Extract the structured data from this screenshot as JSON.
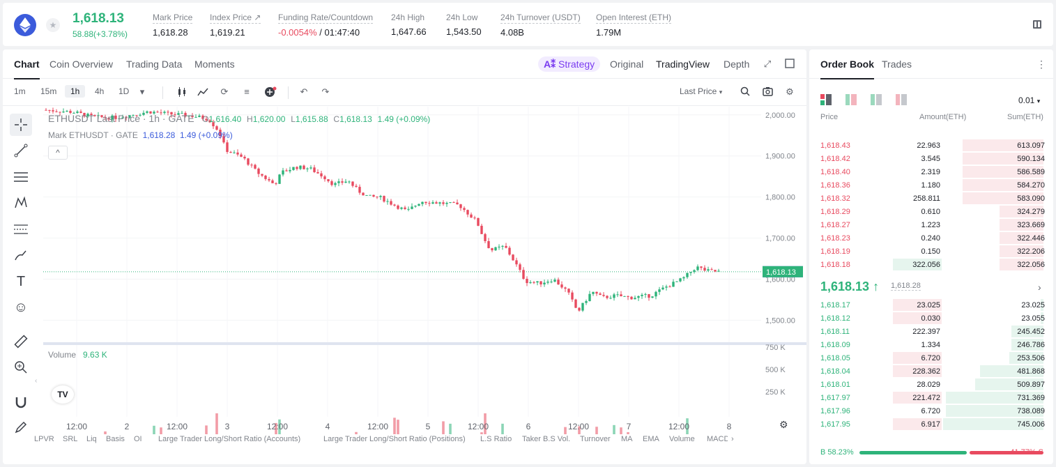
{
  "header": {
    "last_price": "1,618.13",
    "change": "58.88(+3.78%)",
    "stats": [
      {
        "label": "Mark Price",
        "value": "1,618.28"
      },
      {
        "label": "Index Price ↗",
        "value": "1,619.21"
      },
      {
        "label": "Funding Rate/Countdown",
        "value_neg": "-0.0054%",
        "value": " / 01:47:40"
      },
      {
        "label": "24h High",
        "value": "1,647.66"
      },
      {
        "label": "24h Low",
        "value": "1,543.50"
      },
      {
        "label": "24h Turnover (USDT)",
        "value": "4.08B"
      },
      {
        "label": "Open Interest (ETH)",
        "value": "1.79M"
      }
    ]
  },
  "chart_tabs": {
    "chart": "Chart",
    "coin_overview": "Coin Overview",
    "trading_data": "Trading Data",
    "moments": "Moments",
    "strategy": "Strategy",
    "original": "Original",
    "tradingview": "TradingView",
    "depth": "Depth"
  },
  "toolbar": {
    "timeframes": [
      "1m",
      "15m",
      "1h",
      "4h",
      "1D"
    ],
    "active_timeframe": "1h",
    "price_type": "Last Price"
  },
  "legend": {
    "symbol": "ETHUSDT Last Price · 1h · GATE",
    "o_label": "O",
    "o": "1,616.40",
    "h_label": "H",
    "h": "1,620.00",
    "l_label": "L",
    "l": "1,615.88",
    "c_label": "C",
    "c": "1,618.13",
    "chg": "1.49 (+0.09%)",
    "mark_symbol": "Mark ETHUSDT · GATE",
    "mark_value": "1,618.28",
    "mark_chg": "1.49 (+0.09%)",
    "volume_label": "Volume",
    "volume_value": "9.63 K"
  },
  "price_axis": [
    "2,000.00",
    "1,900.00",
    "1,800.00",
    "1,700.00",
    "1,600.00",
    "1,500.00"
  ],
  "price_tags": {
    "mark": "1,618.28",
    "last": "1,618.13",
    "volume": "9.63 K"
  },
  "volume_axis": [
    "750 K",
    "500 K",
    "250 K"
  ],
  "time_axis": [
    "12:00",
    "2",
    "12:00",
    "3",
    "12:00",
    "4",
    "12:00",
    "5",
    "12:00",
    "6",
    "12:00",
    "7",
    "12:00",
    "8"
  ],
  "indicators": [
    "LPVR",
    "SRL",
    "Liq",
    "Basis",
    "OI",
    "Large Trader Long/Short Ratio (Accounts)",
    "Large Trader Long/Short Ratio (Positions)",
    "L.S Ratio",
    "Taker B.S Vol.",
    "Turnover",
    "MA",
    "EMA",
    "Volume",
    "MACD"
  ],
  "colors": {
    "up": "#2eb37a",
    "down": "#e84a5f",
    "accent": "#3b5bdb"
  },
  "orderbook": {
    "tab_book": "Order Book",
    "tab_trades": "Trades",
    "precision": "0.01",
    "col_price": "Price",
    "col_amount": "Amount(ETH)",
    "col_sum": "Sum(ETH)",
    "asks": [
      {
        "price": "1,618.43",
        "amount": "22.963",
        "sum": "613.097",
        "amt_frac": 0.0,
        "sum_frac": 0.33
      },
      {
        "price": "1,618.42",
        "amount": "3.545",
        "sum": "590.134",
        "amt_frac": 0.0,
        "sum_frac": 0.33
      },
      {
        "price": "1,618.40",
        "amount": "2.319",
        "sum": "586.589",
        "amt_frac": 0.0,
        "sum_frac": 0.33
      },
      {
        "price": "1,618.36",
        "amount": "1.180",
        "sum": "584.270",
        "amt_frac": 0.0,
        "sum_frac": 0.33
      },
      {
        "price": "1,618.32",
        "amount": "258.811",
        "sum": "583.090",
        "amt_frac": 0.0,
        "sum_frac": 0.33
      },
      {
        "price": "1,618.29",
        "amount": "0.610",
        "sum": "324.279",
        "amt_frac": 0.0,
        "sum_frac": 0.18
      },
      {
        "price": "1,618.27",
        "amount": "1.223",
        "sum": "323.669",
        "amt_frac": 0.0,
        "sum_frac": 0.18
      },
      {
        "price": "1,618.23",
        "amount": "0.240",
        "sum": "322.446",
        "amt_frac": 0.0,
        "sum_frac": 0.18
      },
      {
        "price": "1,618.19",
        "amount": "0.150",
        "sum": "322.206",
        "amt_frac": 0.0,
        "sum_frac": 0.18
      },
      {
        "price": "1,618.18",
        "amount": "322.056",
        "sum": "322.056",
        "amt_frac": 0.14,
        "sum_frac": 0.18
      }
    ],
    "mid_price": "1,618.13 ↑",
    "mid_mark": "1,618.28",
    "bids": [
      {
        "price": "1,618.17",
        "amount": "23.025",
        "sum": "23.025",
        "amt_frac": 0.1,
        "sum_frac": 0.01
      },
      {
        "price": "1,618.12",
        "amount": "0.030",
        "sum": "23.055",
        "amt_frac": 0.1,
        "sum_frac": 0.01
      },
      {
        "price": "1,618.11",
        "amount": "222.397",
        "sum": "245.452",
        "amt_frac": 0.0,
        "sum_frac": 0.13
      },
      {
        "price": "1,618.09",
        "amount": "1.334",
        "sum": "246.786",
        "amt_frac": 0.0,
        "sum_frac": 0.13
      },
      {
        "price": "1,618.05",
        "amount": "6.720",
        "sum": "253.506",
        "amt_frac": 0.1,
        "sum_frac": 0.14
      },
      {
        "price": "1,618.04",
        "amount": "228.362",
        "sum": "481.868",
        "amt_frac": 0.1,
        "sum_frac": 0.26
      },
      {
        "price": "1,618.01",
        "amount": "28.029",
        "sum": "509.897",
        "amt_frac": 0.0,
        "sum_frac": 0.28
      },
      {
        "price": "1,617.97",
        "amount": "221.472",
        "sum": "731.369",
        "amt_frac": 0.1,
        "sum_frac": 0.4
      },
      {
        "price": "1,617.96",
        "amount": "6.720",
        "sum": "738.089",
        "amt_frac": 0.0,
        "sum_frac": 0.4
      },
      {
        "price": "1,617.95",
        "amount": "6.917",
        "sum": "745.006",
        "amt_frac": 0.1,
        "sum_frac": 0.41
      }
    ],
    "buy_ratio": "B 58.23%",
    "sell_ratio": "41.77% S",
    "buy_fraction": 0.5823
  }
}
